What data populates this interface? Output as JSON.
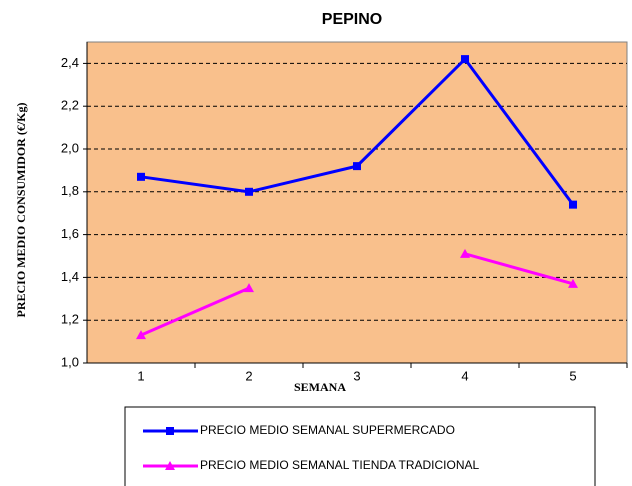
{
  "chart_data": {
    "type": "line",
    "title": "PEPINO",
    "x_label": "SEMANA",
    "y_label": "PRECIO MEDIO CONSUMIDOR  (€/Kg)",
    "categories": [
      "1",
      "2",
      "3",
      "4",
      "5"
    ],
    "series": [
      {
        "name": "PRECIO MEDIO SEMANAL SUPERMERCADO",
        "color": "#0000ff",
        "marker": "square",
        "values": [
          1.87,
          1.8,
          1.92,
          2.42,
          1.74
        ]
      },
      {
        "name": "PRECIO MEDIO SEMANAL TIENDA TRADICIONAL",
        "color": "#ff00ff",
        "marker": "triangle",
        "values": [
          1.13,
          1.35,
          null,
          1.51,
          1.37
        ]
      }
    ],
    "ylim": [
      1.0,
      2.5
    ],
    "yticks": [
      {
        "value": 1.0,
        "label": "1,0"
      },
      {
        "value": 1.2,
        "label": "1,2"
      },
      {
        "value": 1.4,
        "label": "1,4"
      },
      {
        "value": 1.6,
        "label": "1,6"
      },
      {
        "value": 1.8,
        "label": "1,8"
      },
      {
        "value": 2.0,
        "label": "2,0"
      },
      {
        "value": 2.2,
        "label": "2,2"
      },
      {
        "value": 2.4,
        "label": "2,4"
      }
    ],
    "grid": true,
    "plot_background": "#f9c08c",
    "legend": "bottom"
  }
}
